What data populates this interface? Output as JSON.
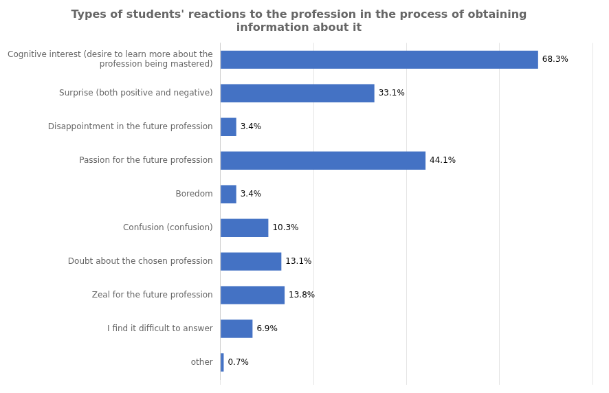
{
  "chart_data": {
    "type": "bar",
    "orientation": "horizontal",
    "title": "Types of students' reactions to the profession in the process of obtaining\ninformation about it",
    "categories": [
      "other",
      "I find it difficult to answer",
      "Zeal for the future profession",
      "Doubt about the chosen profession",
      "Confusion (confusion)",
      "Boredom",
      "Passion for the future profession",
      "Disappointment in the future profession",
      "Surprise (both positive and negative)",
      "Cognitive interest (desire to learn more about the\nprofession being mastered)"
    ],
    "values": [
      0.7,
      6.9,
      13.8,
      13.1,
      10.3,
      3.4,
      44.1,
      3.4,
      33.1,
      68.3
    ],
    "value_labels": [
      "0.7%",
      "6.9%",
      "13.8%",
      "13.1%",
      "10.3%",
      "3.4%",
      "44.1%",
      "3.4%",
      "33.1%",
      "68.3%"
    ],
    "color": "#4472C4",
    "xlim": [
      0,
      80
    ],
    "xticks": [
      0,
      20,
      40,
      60,
      80
    ],
    "grid": true,
    "data_labels": true,
    "tick_labels": "y"
  }
}
